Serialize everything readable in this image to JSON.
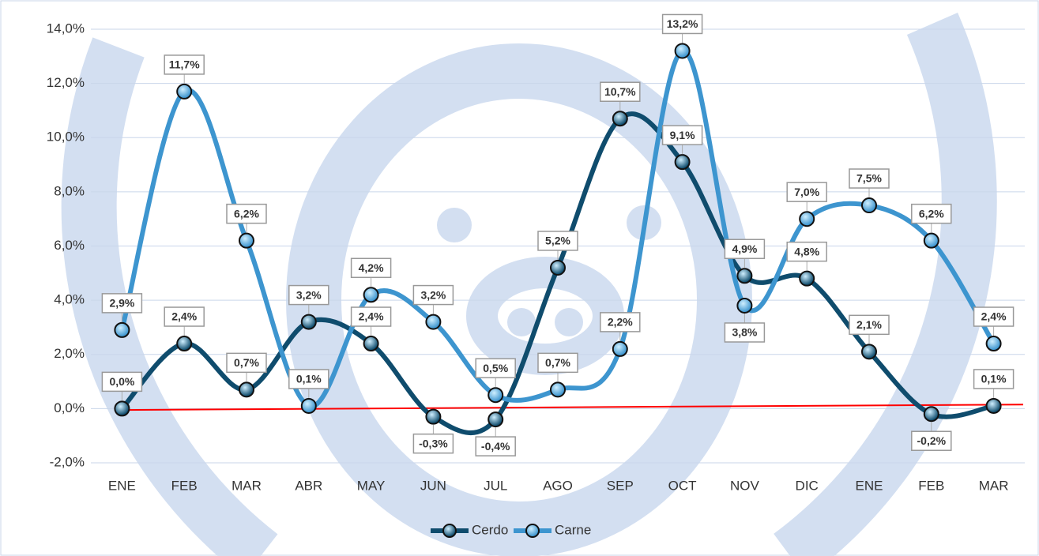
{
  "chart_data": {
    "type": "line",
    "categories": [
      "ENE",
      "FEB",
      "MAR",
      "ABR",
      "MAY",
      "JUN",
      "JUL",
      "AGO",
      "SEP",
      "OCT",
      "NOV",
      "DIC",
      "ENE",
      "FEB",
      "MAR"
    ],
    "series": [
      {
        "name": "Cerdo",
        "color": "#0f4c6d",
        "values": [
          0.0,
          2.4,
          0.7,
          3.2,
          2.4,
          -0.3,
          -0.4,
          5.2,
          10.7,
          9.1,
          4.9,
          4.8,
          2.1,
          -0.2,
          0.1
        ],
        "value_labels": [
          "0,0%",
          "2,4%",
          "0,7%",
          "3,2%",
          "2,4%",
          "-0,3%",
          "-0,4%",
          "5,2%",
          "10,7%",
          "9,1%",
          "4,9%",
          "4,8%",
          "2,1%",
          "-0,2%",
          "0,1%"
        ]
      },
      {
        "name": "Carne",
        "color": "#3d95cf",
        "values": [
          2.9,
          11.7,
          6.2,
          0.1,
          4.2,
          3.2,
          0.5,
          0.7,
          2.2,
          13.2,
          3.8,
          7.0,
          7.5,
          6.2,
          2.4
        ],
        "value_labels": [
          "2,9%",
          "11,7%",
          "6,2%",
          "0,1%",
          "4,2%",
          "3,2%",
          "0,5%",
          "0,7%",
          "2,2%",
          "13,2%",
          "3,8%",
          "7,0%",
          "7,5%",
          "6,2%",
          "2,4%"
        ]
      }
    ],
    "ylim": [
      -2,
      14
    ],
    "yticks": [
      {
        "value": -2,
        "label": "-2,0%"
      },
      {
        "value": 0,
        "label": "0,0%"
      },
      {
        "value": 2,
        "label": "2,0%"
      },
      {
        "value": 4,
        "label": "4,0%"
      },
      {
        "value": 6,
        "label": "6,0%"
      },
      {
        "value": 8,
        "label": "8,0%"
      },
      {
        "value": 10,
        "label": "10,0%"
      },
      {
        "value": 12,
        "label": "12,0%"
      },
      {
        "value": 14,
        "label": "14,0%"
      }
    ],
    "grid": true,
    "smooth": true,
    "negative_label_color": "#ff0000",
    "trendline": {
      "color": "#ff0000",
      "values": [
        -0.05,
        0.15
      ]
    },
    "legend": "bottom"
  }
}
